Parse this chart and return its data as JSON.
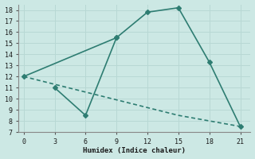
{
  "line1_x": [
    0,
    9,
    12,
    15,
    18,
    21
  ],
  "line1_y": [
    12,
    15.5,
    17.8,
    18.2,
    13.3,
    7.5
  ],
  "line2_x": [
    3,
    6,
    9
  ],
  "line2_y": [
    11,
    8.5,
    15.5
  ],
  "dashed_x": [
    0,
    3,
    6,
    9,
    12,
    15,
    18,
    21
  ],
  "dashed_y": [
    12,
    11.3,
    10.6,
    9.9,
    9.2,
    8.5,
    8.0,
    7.5
  ],
  "color": "#2e7d72",
  "bg_color": "#cce8e4",
  "grid_color": "#b8d8d4",
  "xlabel": "Humidex (Indice chaleur)",
  "xlim": [
    -0.5,
    22
  ],
  "ylim": [
    7,
    18.5
  ],
  "xticks": [
    0,
    3,
    6,
    9,
    12,
    15,
    18,
    21
  ],
  "yticks": [
    7,
    8,
    9,
    10,
    11,
    12,
    13,
    14,
    15,
    16,
    17,
    18
  ],
  "marker": "D",
  "markersize": 3,
  "linewidth": 1.2
}
